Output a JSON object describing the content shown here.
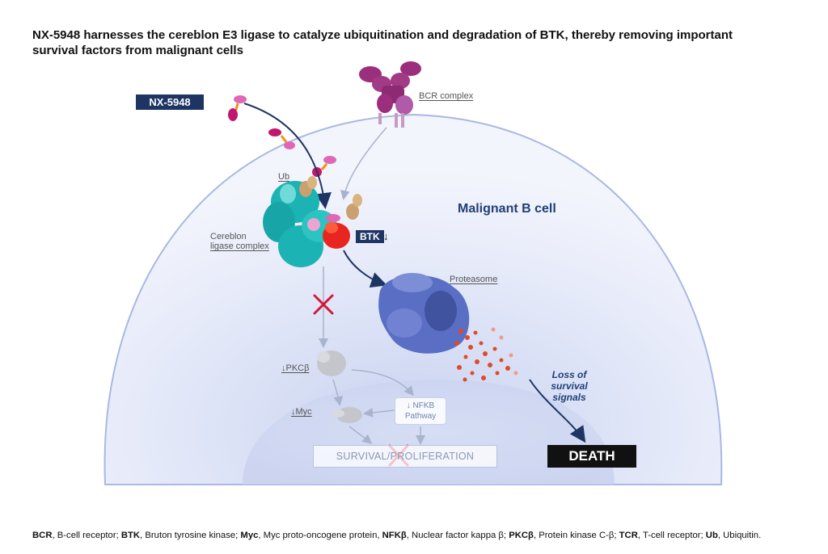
{
  "title": "NX-5948 harnesses the cereblon E3 ligase to catalyze ubiquitination and degradation of BTK, thereby removing important survival factors from malignant cells",
  "labels": {
    "drug": "NX-5948",
    "bcr": "BCR complex",
    "ub": "Ub",
    "cereblon_line1": "Cereblon",
    "cereblon_line2": "ligase complex",
    "btk": "BTK",
    "btk_arrow": "↓",
    "cell": "Malignant B cell",
    "proteasome": "Proteasome",
    "pkcb": "↓PKCβ",
    "myc": "↓Myc",
    "nfkb_line1": "↓ NFKB",
    "nfkb_line2": "Pathway",
    "survival": "SURVIVAL/PROLIFERATION",
    "loss_line1": "Loss of",
    "loss_line2": "survival",
    "loss_line3": "signals",
    "death": "DEATH"
  },
  "footnote": [
    {
      "term": "BCR",
      "def": ", B-cell receptor; "
    },
    {
      "term": "BTK",
      "def": ", Bruton tyrosine kinase; "
    },
    {
      "term": "Myc",
      "def": ", Myc proto-oncogene protein, "
    },
    {
      "term": "NFKβ",
      "def": ", Nuclear factor kappa β; "
    },
    {
      "term": "PKCβ",
      "def": ", Protein kinase C-β; "
    },
    {
      "term": "TCR",
      "def": ", T-cell receptor; "
    },
    {
      "term": "Ub",
      "def": ", Ubiquitin."
    }
  ],
  "colors": {
    "navy": "#1e3563",
    "cell_fill": "#e4e9f8",
    "cereblon": "#1bb3b3",
    "btk": "#e8261f",
    "proteasome": "#5a6fc4",
    "drug": "#c0186c",
    "bcr": "#9b2f7d",
    "cross": "#d4173a"
  }
}
